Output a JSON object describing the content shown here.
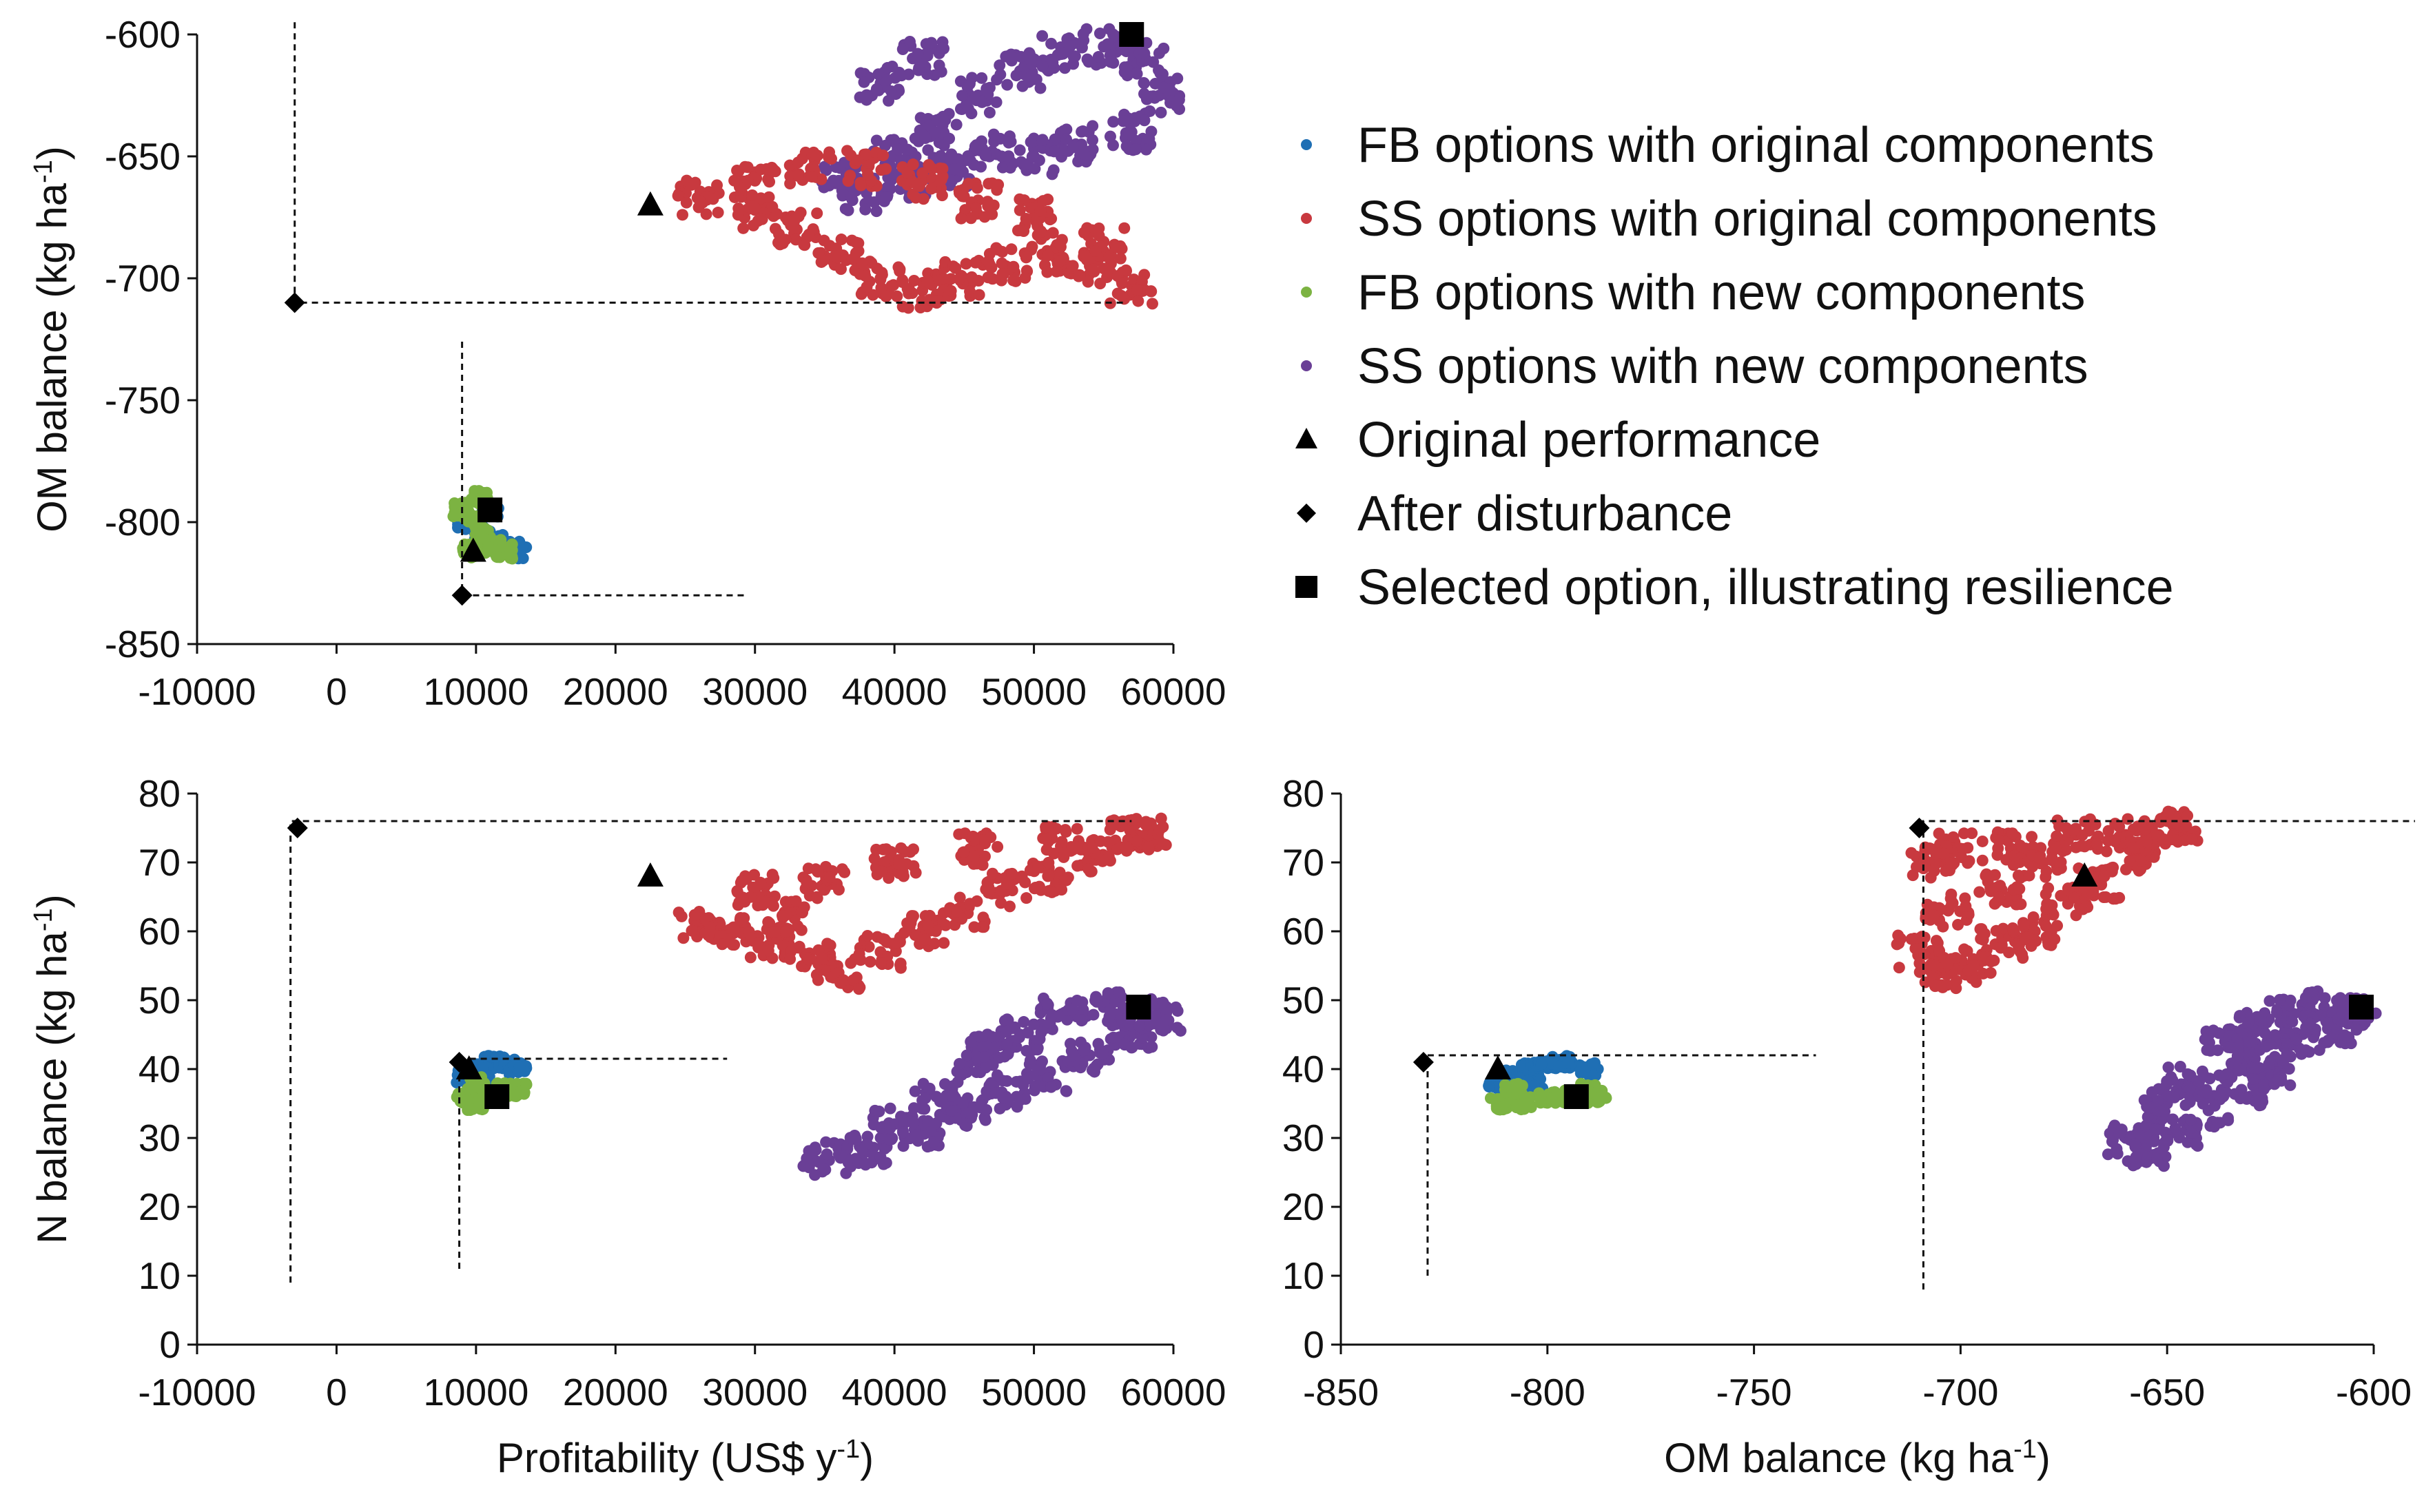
{
  "colors": {
    "fb_original": "#1f6fb4",
    "ss_original": "#c8393f",
    "fb_new": "#7cb342",
    "ss_new": "#6a3f96",
    "marker": "#000000",
    "axis": "#111111"
  },
  "legend": {
    "items": [
      {
        "label": "FB options with original components",
        "marker": "dot",
        "series": "fb_original"
      },
      {
        "label": "SS options with original components",
        "marker": "dot",
        "series": "ss_original"
      },
      {
        "label": "FB options with new components",
        "marker": "dot",
        "series": "fb_new"
      },
      {
        "label": "SS options with new components",
        "marker": "dot",
        "series": "ss_new"
      },
      {
        "label": "Original performance",
        "marker": "triangle",
        "series": "marker"
      },
      {
        "label": "After disturbance",
        "marker": "diamond",
        "series": "marker"
      },
      {
        "label": "Selected option, illustrating resilience",
        "marker": "square",
        "series": "marker"
      }
    ]
  },
  "chart_data": [
    {
      "id": "top",
      "type": "scatter",
      "xlabel": "",
      "ylabel": "OM balance (kg ha",
      "ylabel_sup": "-1",
      "ylabel_tail": ")",
      "xlim": [
        -10000,
        60000
      ],
      "ylim": [
        -850,
        -600
      ],
      "xticks": [
        -10000,
        0,
        10000,
        20000,
        30000,
        40000,
        50000,
        60000
      ],
      "xticklabels": [
        "-10000",
        "0",
        "10000",
        "20000",
        "30000",
        "40000",
        "50000",
        "60000"
      ],
      "yticks": [
        -850,
        -800,
        -750,
        -700,
        -650,
        -600
      ],
      "yticklabels": [
        "-850",
        "-800",
        "-750",
        "-700",
        "-650",
        "-600"
      ],
      "clusters": [
        {
          "series": "ss_new",
          "label": "SS options with new components",
          "approx_points": [
            [
              36000,
              -660
            ],
            [
              40000,
              -650
            ],
            [
              43000,
              -640
            ],
            [
              46000,
              -625
            ],
            [
              49000,
              -615
            ],
            [
              52000,
              -608
            ],
            [
              55000,
              -605
            ],
            [
              58000,
              -610
            ],
            [
              59000,
              -625
            ],
            [
              57000,
              -640
            ],
            [
              53000,
              -645
            ],
            [
              50000,
              -650
            ],
            [
              47000,
              -648
            ],
            [
              44000,
              -655
            ],
            [
              41000,
              -660
            ],
            [
              38000,
              -665
            ],
            [
              39000,
              -620
            ],
            [
              42000,
              -610
            ]
          ]
        },
        {
          "series": "ss_original",
          "label": "SS options with original components",
          "approx_points": [
            [
              26000,
              -667
            ],
            [
              30000,
              -672
            ],
            [
              33000,
              -680
            ],
            [
              36000,
              -690
            ],
            [
              39000,
              -700
            ],
            [
              42000,
              -705
            ],
            [
              45000,
              -700
            ],
            [
              48000,
              -695
            ],
            [
              51000,
              -690
            ],
            [
              54000,
              -695
            ],
            [
              57000,
              -703
            ],
            [
              55000,
              -685
            ],
            [
              50000,
              -675
            ],
            [
              46000,
              -668
            ],
            [
              42000,
              -660
            ],
            [
              38000,
              -655
            ],
            [
              34000,
              -655
            ],
            [
              30000,
              -660
            ]
          ]
        },
        {
          "series": "fb_original",
          "label": "FB options with original components",
          "approx_points": [
            [
              9200,
              -800
            ],
            [
              10500,
              -805
            ],
            [
              11500,
              -808
            ],
            [
              12500,
              -810
            ],
            [
              13000,
              -812
            ],
            [
              11000,
              -796
            ]
          ]
        },
        {
          "series": "fb_new",
          "label": "FB options with new components",
          "approx_points": [
            [
              9000,
              -795
            ],
            [
              9800,
              -800
            ],
            [
              10500,
              -805
            ],
            [
              11200,
              -810
            ],
            [
              12000,
              -812
            ],
            [
              9600,
              -812
            ],
            [
              10200,
              -790
            ]
          ]
        }
      ],
      "markers": [
        {
          "type": "triangle",
          "label": "Original performance",
          "x": 22500,
          "y": -670
        },
        {
          "type": "square",
          "label": "Selected option, illustrating resilience",
          "x": 57000,
          "y": -600
        },
        {
          "type": "diamond",
          "label": "After disturbance",
          "x": -3000,
          "y": -710
        },
        {
          "type": "triangle",
          "label": "Original performance",
          "x": 9800,
          "y": -812
        },
        {
          "type": "square",
          "label": "Selected option, illustrating resilience",
          "x": 11000,
          "y": -795
        },
        {
          "type": "diamond",
          "label": "After disturbance",
          "x": 9000,
          "y": -830
        }
      ],
      "dashed_guides": [
        {
          "points": [
            [
              -3000,
              -595
            ],
            [
              -3000,
              -710
            ],
            [
              56500,
              -710
            ]
          ]
        },
        {
          "points": [
            [
              9000,
              -726
            ],
            [
              9000,
              -830
            ],
            [
              29500,
              -830
            ]
          ]
        }
      ]
    },
    {
      "id": "bottom-left",
      "type": "scatter",
      "xlabel": "Profitability (US$ y",
      "xlabel_sup": "-1",
      "xlabel_tail": ")",
      "ylabel": "N balance (kg ha",
      "ylabel_sup": "-1",
      "ylabel_tail": ")",
      "xlim": [
        -10000,
        60000
      ],
      "ylim": [
        0,
        80
      ],
      "xticks": [
        -10000,
        0,
        10000,
        20000,
        30000,
        40000,
        50000,
        60000
      ],
      "xticklabels": [
        "-10000",
        "0",
        "10000",
        "20000",
        "30000",
        "40000",
        "50000",
        "60000"
      ],
      "yticks": [
        0,
        10,
        20,
        30,
        40,
        50,
        60,
        70,
        80
      ],
      "yticklabels": [
        "0",
        "10",
        "20",
        "30",
        "40",
        "50",
        "60",
        "70",
        "80"
      ],
      "clusters": [
        {
          "series": "ss_original",
          "label": "SS options with original components",
          "approx_points": [
            [
              26000,
              61
            ],
            [
              28000,
              60
            ],
            [
              31000,
              58
            ],
            [
              34000,
              56
            ],
            [
              36000,
              54
            ],
            [
              39000,
              57
            ],
            [
              42000,
              60
            ],
            [
              45000,
              63
            ],
            [
              48000,
              66
            ],
            [
              51000,
              68
            ],
            [
              54000,
              71
            ],
            [
              57000,
              74
            ],
            [
              58000,
              74
            ],
            [
              52000,
              73
            ],
            [
              46000,
              72
            ],
            [
              40000,
              70
            ],
            [
              35000,
              67
            ],
            [
              30000,
              66
            ],
            [
              32000,
              62
            ]
          ]
        },
        {
          "series": "ss_new",
          "label": "SS options with new components",
          "approx_points": [
            [
              35000,
              27
            ],
            [
              38000,
              28
            ],
            [
              42000,
              31
            ],
            [
              45000,
              34
            ],
            [
              48000,
              36
            ],
            [
              51000,
              39
            ],
            [
              54000,
              42
            ],
            [
              57000,
              45
            ],
            [
              59000,
              47
            ],
            [
              58000,
              48
            ],
            [
              55000,
              49
            ],
            [
              52000,
              48
            ],
            [
              49000,
              45
            ],
            [
              46000,
              41
            ],
            [
              43000,
              36
            ],
            [
              40000,
              32
            ],
            [
              47000,
              44
            ]
          ]
        },
        {
          "series": "fb_original",
          "label": "FB options with original components",
          "approx_points": [
            [
              9200,
              39
            ],
            [
              10200,
              40
            ],
            [
              11200,
              41
            ],
            [
              12200,
              41
            ],
            [
              13000,
              40
            ],
            [
              10500,
              38
            ]
          ]
        },
        {
          "series": "fb_new",
          "label": "FB options with new components",
          "approx_points": [
            [
              9200,
              36
            ],
            [
              10000,
              35
            ],
            [
              11000,
              36
            ],
            [
              12000,
              37
            ],
            [
              13000,
              37
            ],
            [
              10000,
              38
            ]
          ]
        }
      ],
      "markers": [
        {
          "type": "triangle",
          "label": "Original performance",
          "x": 22500,
          "y": 68
        },
        {
          "type": "square",
          "label": "Selected option, illustrating resilience",
          "x": 57500,
          "y": 49
        },
        {
          "type": "diamond",
          "label": "After disturbance",
          "x": -2800,
          "y": 75
        },
        {
          "type": "triangle",
          "label": "Original performance",
          "x": 9500,
          "y": 40
        },
        {
          "type": "square",
          "label": "Selected option, illustrating resilience",
          "x": 11500,
          "y": 36
        },
        {
          "type": "diamond",
          "label": "After disturbance",
          "x": 8800,
          "y": 41
        }
      ],
      "dashed_guides": [
        {
          "points": [
            [
              -3300,
              9
            ],
            [
              -3300,
              76
            ],
            [
              57000,
              76
            ]
          ]
        },
        {
          "points": [
            [
              8800,
              11
            ],
            [
              8800,
              41.5
            ],
            [
              28000,
              41.5
            ]
          ]
        }
      ]
    },
    {
      "id": "bottom-right",
      "type": "scatter",
      "xlabel": "OM balance (kg ha",
      "xlabel_sup": "-1",
      "xlabel_tail": ")",
      "ylabel": "",
      "xlim": [
        -850,
        -600
      ],
      "ylim": [
        0,
        80
      ],
      "xticks": [
        -850,
        -800,
        -750,
        -700,
        -650,
        -600
      ],
      "xticklabels": [
        "-850",
        "-800",
        "-750",
        "-700",
        "-650",
        "-600"
      ],
      "yticks": [
        0,
        10,
        20,
        30,
        40,
        50,
        60,
        70,
        80
      ],
      "yticklabels": [
        "0",
        "10",
        "20",
        "30",
        "40",
        "50",
        "60",
        "70",
        "80"
      ],
      "clusters": [
        {
          "series": "ss_original",
          "label": "SS options with original components",
          "approx_points": [
            [
              -710,
              57
            ],
            [
              -705,
              54
            ],
            [
              -698,
              55
            ],
            [
              -690,
              58
            ],
            [
              -682,
              60
            ],
            [
              -674,
              64
            ],
            [
              -666,
              67
            ],
            [
              -658,
              71
            ],
            [
              -652,
              74
            ],
            [
              -648,
              75
            ],
            [
              -660,
              74
            ],
            [
              -672,
              74
            ],
            [
              -686,
              72
            ],
            [
              -700,
              72
            ],
            [
              -707,
              70
            ],
            [
              -703,
              63
            ],
            [
              -690,
              66
            ],
            [
              -680,
              70
            ]
          ]
        },
        {
          "series": "ss_new",
          "label": "SS options with new components",
          "approx_points": [
            [
              -660,
              30
            ],
            [
              -655,
              28
            ],
            [
              -648,
              31
            ],
            [
              -640,
              34
            ],
            [
              -632,
              37
            ],
            [
              -625,
              40
            ],
            [
              -618,
              43
            ],
            [
              -610,
              46
            ],
            [
              -604,
              48
            ],
            [
              -612,
              49
            ],
            [
              -620,
              48
            ],
            [
              -628,
              46
            ],
            [
              -636,
              44
            ],
            [
              -645,
              38
            ],
            [
              -650,
              35
            ],
            [
              -630,
              42
            ]
          ]
        },
        {
          "series": "fb_original",
          "label": "FB options with original components",
          "approx_points": [
            [
              -812,
              38
            ],
            [
              -808,
              39
            ],
            [
              -804,
              40
            ],
            [
              -800,
              41
            ],
            [
              -795,
              41
            ],
            [
              -790,
              40
            ],
            [
              -803,
              38
            ]
          ]
        },
        {
          "series": "fb_new",
          "label": "FB options with new components",
          "approx_points": [
            [
              -812,
              35
            ],
            [
              -806,
              35
            ],
            [
              -800,
              36
            ],
            [
              -795,
              36
            ],
            [
              -790,
              37
            ],
            [
              -788,
              36
            ],
            [
              -808,
              37
            ]
          ]
        }
      ],
      "markers": [
        {
          "type": "triangle",
          "label": "Original performance",
          "x": -670,
          "y": 68
        },
        {
          "type": "square",
          "label": "Selected option, illustrating resilience",
          "x": -603,
          "y": 49
        },
        {
          "type": "diamond",
          "label": "After disturbance",
          "x": -710,
          "y": 75
        },
        {
          "type": "triangle",
          "label": "Original performance",
          "x": -812,
          "y": 40
        },
        {
          "type": "square",
          "label": "Selected option, illustrating resilience",
          "x": -793,
          "y": 36
        },
        {
          "type": "diamond",
          "label": "After disturbance",
          "x": -830,
          "y": 41
        }
      ],
      "dashed_guides": [
        {
          "points": [
            [
              -709,
              8
            ],
            [
              -709,
              76
            ],
            [
              -590,
              76
            ]
          ]
        },
        {
          "points": [
            [
              -829,
              10
            ],
            [
              -829,
              42
            ],
            [
              -735,
              42
            ]
          ]
        }
      ]
    }
  ]
}
